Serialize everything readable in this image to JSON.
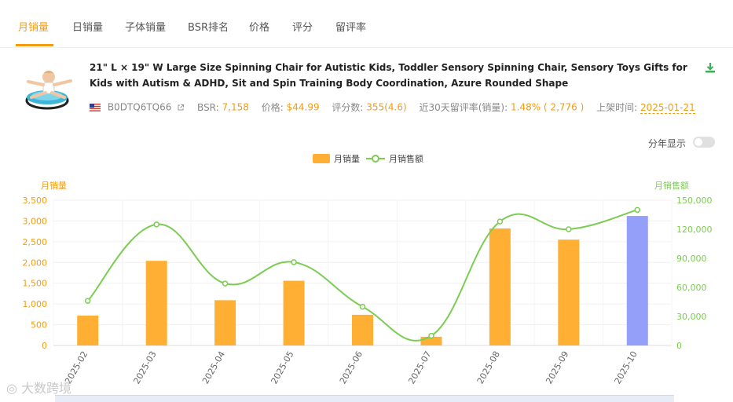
{
  "tabs": [
    {
      "label": "月销量",
      "active": true
    },
    {
      "label": "日销量",
      "active": false
    },
    {
      "label": "子体销量",
      "active": false
    },
    {
      "label": "BSR排名",
      "active": false
    },
    {
      "label": "价格",
      "active": false
    },
    {
      "label": "评分",
      "active": false
    },
    {
      "label": "留评率",
      "active": false
    }
  ],
  "product": {
    "title": "21\" L × 19\" W Large Size Spinning Chair for Autistic Kids, Toddler Sensory Spinning Chair, Sensory Toys Gifts for Kids with Autism & ADHD, Sit and Spin Training Body Coordination, Azure Rounded Shape",
    "asin": "B0DTQ6TQ66",
    "bsr_label": "BSR:",
    "bsr_value": "7,158",
    "price_label": "价格:",
    "price_value": "$44.99",
    "rating_label": "评分数:",
    "rating_value": "355(4.6)",
    "review_rate_label": "近30天留评率(销量):",
    "review_rate_value": "1.48% ( 2,776 )",
    "listed_label": "上架时间:",
    "listed_value": "2025-01-21"
  },
  "year_toggle": {
    "label": "分年显示",
    "on": false
  },
  "watermark": "大数跨境",
  "colors": {
    "accent": "#f39c12",
    "bar": "#ffb034",
    "bar_highlight": "#949ffa",
    "line": "#7ccc52"
  },
  "chart_data": {
    "type": "bar",
    "categories": [
      "2025-02",
      "2025-03",
      "2025-04",
      "2025-05",
      "2025-06",
      "2025-07",
      "2025-08",
      "2025-09",
      "2025-10"
    ],
    "series": [
      {
        "name": "月销量",
        "type": "bar",
        "axis": "left",
        "values": [
          720,
          2040,
          1090,
          1560,
          740,
          210,
          2820,
          2550,
          3120
        ]
      },
      {
        "name": "月销售额",
        "type": "line",
        "axis": "right",
        "values": [
          46000,
          125000,
          64000,
          86000,
          40000,
          10000,
          128000,
          120000,
          140000
        ]
      }
    ],
    "ylabel_left": "月销量",
    "ylabel_right": "月销售额",
    "ylim_left": [
      0,
      3500
    ],
    "ylim_right": [
      0,
      150000
    ],
    "yticks_left": [
      "0",
      "500",
      "1,000",
      "1,500",
      "2,000",
      "2,500",
      "3,000",
      "3,500"
    ],
    "yticks_right": [
      "0",
      "30,000",
      "60,000",
      "90,000",
      "120,000",
      "150,000"
    ],
    "highlight_category": "2025-10",
    "grid": true,
    "legend": "top-center"
  }
}
